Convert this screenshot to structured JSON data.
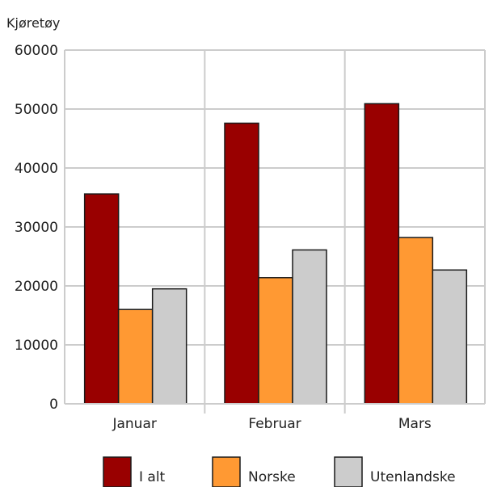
{
  "chart_data": {
    "type": "bar",
    "ylabel": "Kjøretøy",
    "ylim": [
      0,
      60000
    ],
    "yticks": [
      0,
      10000,
      20000,
      30000,
      40000,
      50000,
      60000
    ],
    "categories": [
      "Januar",
      "Februar",
      "Mars"
    ],
    "series": [
      {
        "name": "I alt",
        "values": [
          35600,
          47600,
          50900
        ],
        "color": "#990000"
      },
      {
        "name": "Norske",
        "values": [
          16000,
          21400,
          28200
        ],
        "color": "#ff9933"
      },
      {
        "name": "Utenlandske",
        "values": [
          19500,
          26100,
          22700
        ],
        "color": "#cccccc"
      }
    ],
    "grid": true,
    "legend": "bottom"
  }
}
